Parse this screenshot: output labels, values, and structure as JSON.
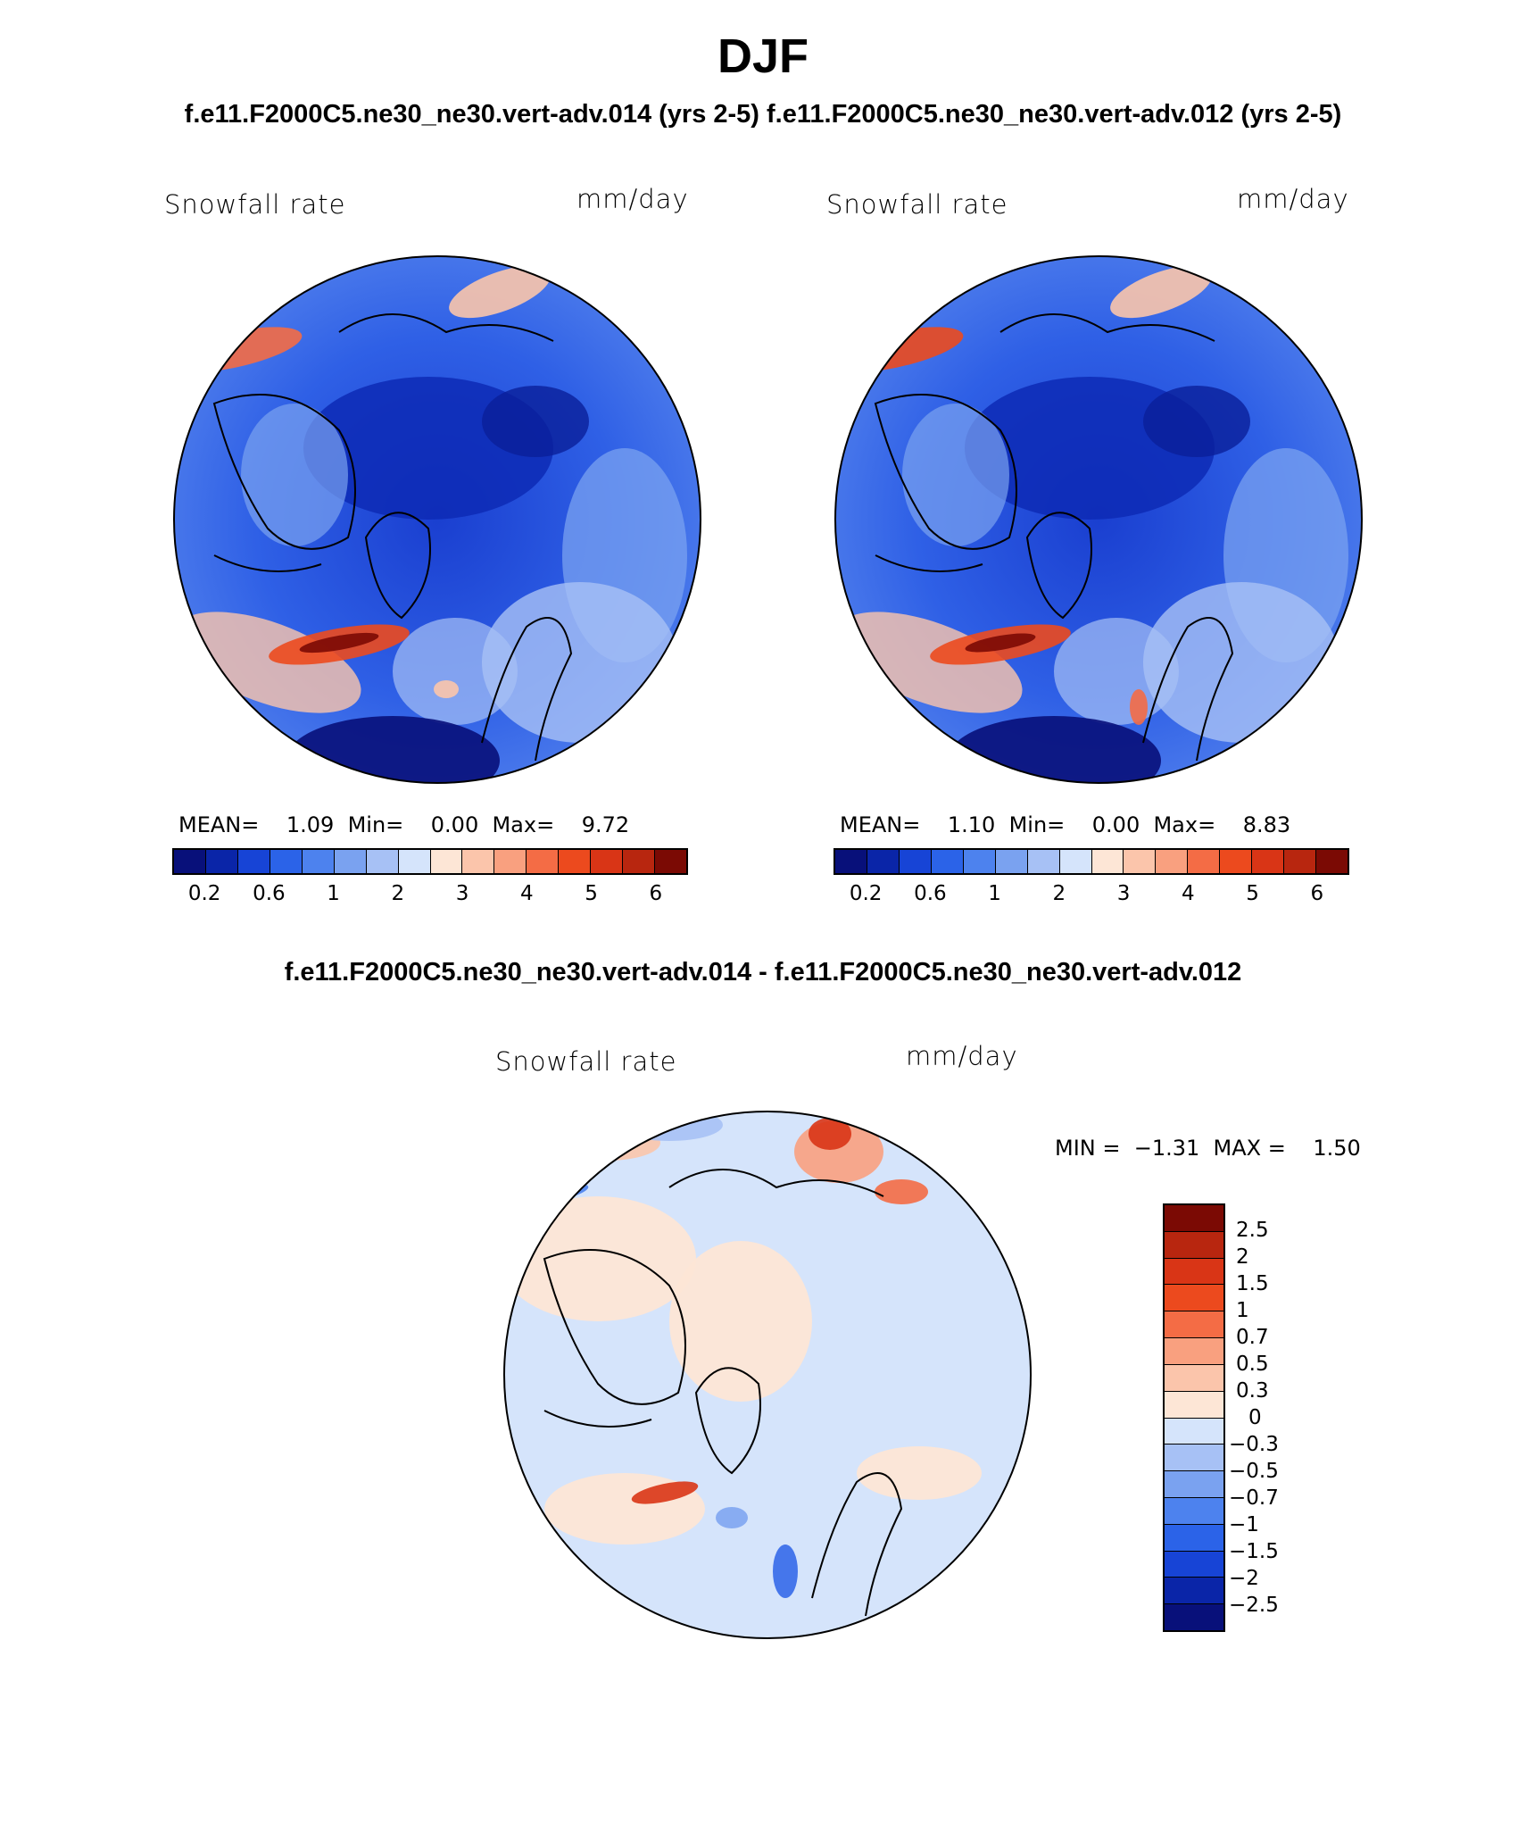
{
  "title": "DJF",
  "subtitle": "f.e11.F2000C5.ne30_ne30.vert-adv.014 (yrs 2-5)  f.e11.F2000C5.ne30_ne30.vert-adv.012 (yrs 2-5)",
  "diff_title": "f.e11.F2000C5.ne30_ne30.vert-adv.014 - f.e11.F2000C5.ne30_ne30.vert-adv.012",
  "colors": {
    "abs_scale": [
      "#08107a",
      "#0a25a8",
      "#1744d6",
      "#2b63e8",
      "#4d82ee",
      "#7aa2f0",
      "#a7c1f5",
      "#d5e4fb",
      "#fde6d6",
      "#fbc5ab",
      "#f9a07f",
      "#f46c45",
      "#ec4a1e",
      "#d93516",
      "#b8260f",
      "#7b0a04"
    ],
    "diff_scale": [
      "#7b0a04",
      "#b8260f",
      "#d93516",
      "#ec4a1e",
      "#f46c45",
      "#f9a07f",
      "#fbc5ab",
      "#fde6d6",
      "#d5e4fb",
      "#a7c1f5",
      "#7aa2f0",
      "#4d82ee",
      "#2b63e8",
      "#1744d6",
      "#0a25a8",
      "#08107a"
    ]
  },
  "panels": [
    {
      "variable": "Snowfall rate",
      "units": "mm/day",
      "stats": "MEAN=    1.09  Min=    0.00  Max=    9.72",
      "tick_labels": [
        "0.2",
        "0.6",
        "1",
        "2",
        "3",
        "4",
        "5",
        "6"
      ]
    },
    {
      "variable": "Snowfall rate",
      "units": "mm/day",
      "stats": "MEAN=    1.10  Min=    0.00  Max=    8.83",
      "tick_labels": [
        "0.2",
        "0.6",
        "1",
        "2",
        "3",
        "4",
        "5",
        "6"
      ]
    }
  ],
  "diff_panel": {
    "variable": "Snowfall rate",
    "units": "mm/day",
    "stats": "MIN =  −1.31  MAX =    1.50",
    "tick_labels": [
      "2.5",
      "2",
      "1.5",
      "1",
      "0.7",
      "0.5",
      "0.3",
      "0",
      "−0.3",
      "−0.5",
      "−0.7",
      "−1",
      "−1.5",
      "−2",
      "−2.5"
    ]
  }
}
